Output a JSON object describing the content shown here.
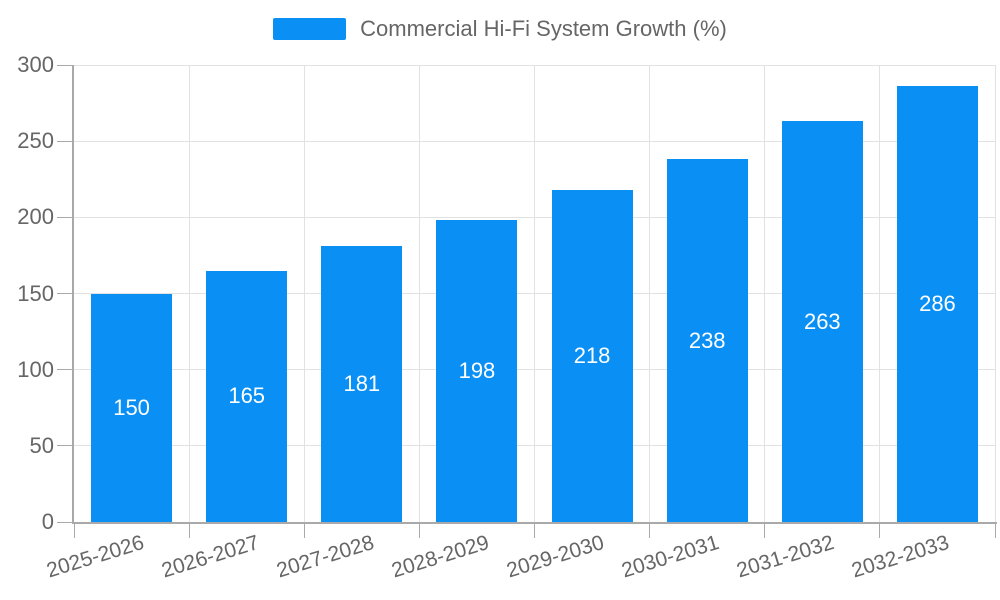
{
  "legend": {
    "label": "Commercial Hi-Fi System Growth (%)"
  },
  "chart_data": {
    "type": "bar",
    "title": "Commercial Hi-Fi System Growth (%)",
    "categories": [
      "2025-2026",
      "2026-2027",
      "2027-2028",
      "2028-2029",
      "2029-2030",
      "2030-2031",
      "2031-2032",
      "2032-2033"
    ],
    "series": [
      {
        "name": "Commercial Hi-Fi System Growth (%)",
        "values": [
          150,
          165,
          181,
          198,
          218,
          238,
          263,
          286
        ],
        "color": "#0a90f5"
      }
    ],
    "value_labels": [
      150,
      165,
      181,
      198,
      218,
      238,
      263,
      286
    ],
    "xlabel": "",
    "ylabel": "",
    "ylim": [
      0,
      300
    ],
    "yticks": [
      0,
      50,
      100,
      150,
      200,
      250,
      300
    ],
    "grid": true,
    "legend_position": "top-center",
    "x_tick_rotation_deg": -17,
    "colors": {
      "bar": "#0a90f5",
      "value_label": "#ffffff",
      "axis_text": "#666666",
      "grid_line": "#e2e2e2",
      "axis_line": "#a9a9a9",
      "background": "#ffffff"
    }
  }
}
